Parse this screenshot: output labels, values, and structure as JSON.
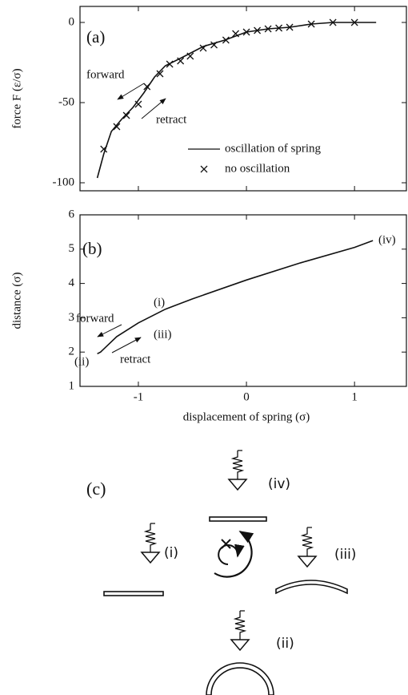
{
  "chart_data": [
    {
      "type": "line",
      "ylabel": "force F (ε/σ)",
      "xlim": [
        -1.54,
        1.48
      ],
      "xticks": [
        -1,
        0,
        1
      ],
      "ylim": [
        -105,
        10
      ],
      "yticks": [
        -100,
        -50,
        0
      ],
      "legend": "lower right",
      "annotations": [
        "(a)",
        "forward",
        "retract"
      ],
      "series": [
        {
          "name": "oscillation of spring",
          "color": "#111111",
          "marker": "none",
          "x": [
            -1.38,
            -1.32,
            -1.25,
            -1.15,
            -1.05,
            -0.95,
            -0.85,
            -0.75,
            -0.6,
            -0.4,
            -0.2,
            0,
            0.2,
            0.4,
            0.6,
            0.8,
            1.0,
            1.2
          ],
          "values": [
            -97,
            -82,
            -68,
            -60,
            -53,
            -44,
            -34,
            -27,
            -22,
            -15,
            -11,
            -6,
            -4,
            -3,
            -1,
            0,
            0,
            0
          ]
        },
        {
          "name": "no oscillation",
          "color": "#111111",
          "marker": "x",
          "x": [
            -1.32,
            -1.2,
            -1.11,
            -1.0,
            -0.92,
            -0.8,
            -0.71,
            -0.61,
            -0.52,
            -0.4,
            -0.3,
            -0.19,
            -0.1,
            0,
            0.1,
            0.2,
            0.3,
            0.4,
            0.6,
            0.8,
            1.0
          ],
          "values": [
            -79,
            -65,
            -58,
            -51,
            -40,
            -32,
            -26,
            -24,
            -21,
            -16,
            -14,
            -11,
            -7,
            -6,
            -5,
            -4,
            -3.5,
            -3,
            -1,
            0,
            0
          ]
        }
      ]
    },
    {
      "type": "line",
      "ylabel": "distance (σ)",
      "xlabel": "displacement of spring (σ)",
      "xlim": [
        -1.54,
        1.48
      ],
      "xticks": [
        -1,
        0,
        1
      ],
      "ylim": [
        1,
        6
      ],
      "yticks": [
        1,
        2,
        3,
        4,
        5,
        6
      ],
      "annotations": [
        "(b)",
        "(i)",
        "forward",
        "(iii)",
        "retract",
        "(ii)",
        "(iv)"
      ],
      "series": [
        {
          "color": "#111111",
          "marker": "none",
          "x": [
            -1.38,
            -1.35,
            -1.2,
            -1.0,
            -0.75,
            -0.5,
            0,
            0.5,
            1.0,
            1.17
          ],
          "values": [
            1.95,
            2.0,
            2.45,
            2.85,
            3.25,
            3.55,
            4.1,
            4.6,
            5.05,
            5.25
          ]
        }
      ]
    }
  ],
  "diagram": {
    "label": "(c)",
    "states": [
      "(iv)",
      "(i)",
      "(iii)",
      "(ii)"
    ]
  }
}
